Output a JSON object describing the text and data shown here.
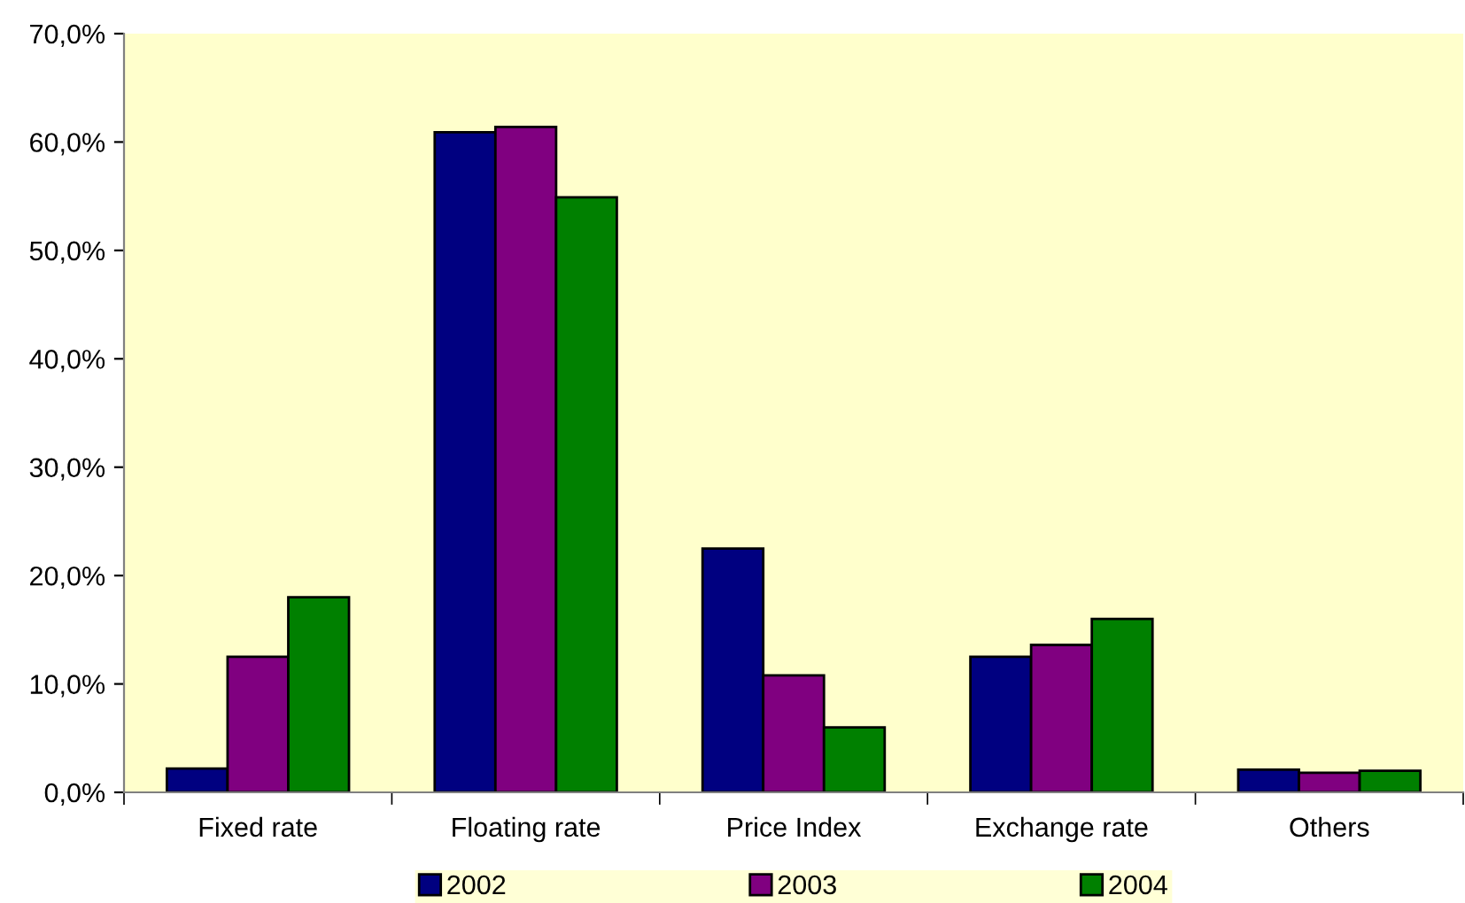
{
  "chart_data": {
    "type": "bar",
    "categories": [
      "Fixed rate",
      "Floating rate",
      "Price Index",
      "Exchange rate",
      "Others"
    ],
    "series": [
      {
        "name": "2002",
        "color": "#000080",
        "values": [
          2.2,
          60.9,
          22.5,
          12.5,
          2.1
        ]
      },
      {
        "name": "2003",
        "color": "#800080",
        "values": [
          12.5,
          61.4,
          10.8,
          13.6,
          1.8
        ]
      },
      {
        "name": "2004",
        "color": "#008000",
        "values": [
          18.0,
          54.9,
          6.0,
          16.0,
          2.0
        ]
      }
    ],
    "ylim": [
      0,
      70
    ],
    "yticks": [
      {
        "value": 0,
        "label": "0,0%"
      },
      {
        "value": 10,
        "label": "10,0%"
      },
      {
        "value": 20,
        "label": "20,0%"
      },
      {
        "value": 30,
        "label": "30,0%"
      },
      {
        "value": 40,
        "label": "40,0%"
      },
      {
        "value": 50,
        "label": "50,0%"
      },
      {
        "value": 60,
        "label": "60,0%"
      },
      {
        "value": 70,
        "label": "70,0%"
      }
    ],
    "grid": false,
    "legend": "bottom"
  }
}
